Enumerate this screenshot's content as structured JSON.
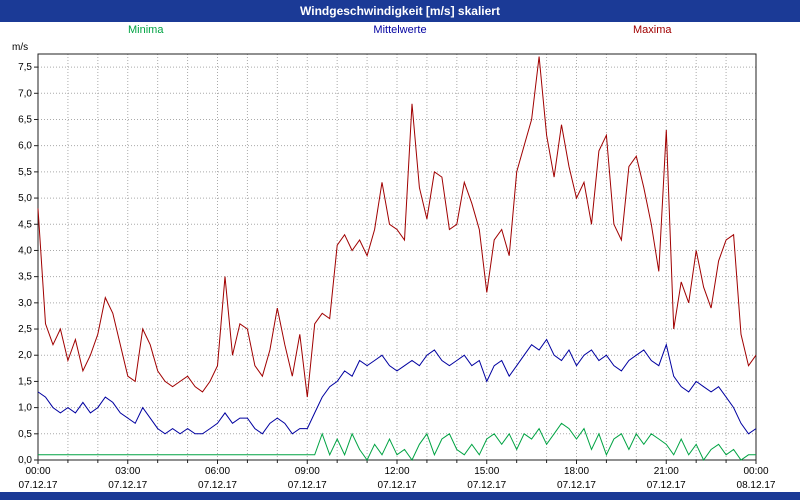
{
  "title_bar": {
    "title": "Windgeschwindigkeit [m/s] skaliert"
  },
  "legend": {
    "minima": "Minima",
    "mittelwerte": "Mittelwerte",
    "maxima": "Maxima"
  },
  "colors": {
    "title_bar_bg": "#1b3a96",
    "bottom_strip_bg": "#1b3a96",
    "plot_border": "#222222",
    "grid": "#aaaaaa",
    "axis_text": "#000000"
  },
  "axes": {
    "y_unit": "m/s",
    "y_ticks": [
      "0,0",
      "0,5",
      "1,0",
      "1,5",
      "2,0",
      "2,5",
      "3,0",
      "3,5",
      "4,0",
      "4,5",
      "5,0",
      "5,5",
      "6,0",
      "6,5",
      "7,0",
      "7,5"
    ],
    "x_ticks": [
      {
        "time": "00:00",
        "date": "07.12.17"
      },
      {
        "time": "03:00",
        "date": "07.12.17"
      },
      {
        "time": "06:00",
        "date": "07.12.17"
      },
      {
        "time": "09:00",
        "date": "07.12.17"
      },
      {
        "time": "12:00",
        "date": "07.12.17"
      },
      {
        "time": "15:00",
        "date": "07.12.17"
      },
      {
        "time": "18:00",
        "date": "07.12.17"
      },
      {
        "time": "21:00",
        "date": "07.12.17"
      },
      {
        "time": "00:00",
        "date": "08.12.17"
      }
    ]
  },
  "chart_data": {
    "type": "line",
    "title": "Windgeschwindigkeit [m/s] skaliert",
    "xlabel": "",
    "ylabel": "m/s",
    "x_range": [
      0,
      24
    ],
    "ylim": [
      0,
      7.75
    ],
    "y_tick_step": 0.5,
    "grid": true,
    "x_interval_hours": 0.25,
    "legend_position": "top",
    "series": [
      {
        "name": "Minima",
        "color": "#00a343",
        "values": [
          0.1,
          0.1,
          0.1,
          0.1,
          0.1,
          0.1,
          0.1,
          0.1,
          0.1,
          0.1,
          0.1,
          0.1,
          0.1,
          0.1,
          0.1,
          0.1,
          0.1,
          0.1,
          0.1,
          0.1,
          0.1,
          0.1,
          0.1,
          0.1,
          0.1,
          0.1,
          0.1,
          0.1,
          0.1,
          0.1,
          0.1,
          0.1,
          0.1,
          0.1,
          0.1,
          0.1,
          0.1,
          0.1,
          0.5,
          0.1,
          0.4,
          0.1,
          0.5,
          0.2,
          0.0,
          0.3,
          0.1,
          0.4,
          0.1,
          0.2,
          0.0,
          0.3,
          0.5,
          0.1,
          0.4,
          0.5,
          0.2,
          0.1,
          0.3,
          0.1,
          0.4,
          0.5,
          0.3,
          0.5,
          0.2,
          0.5,
          0.4,
          0.6,
          0.3,
          0.5,
          0.7,
          0.6,
          0.4,
          0.6,
          0.2,
          0.5,
          0.1,
          0.4,
          0.5,
          0.2,
          0.5,
          0.3,
          0.5,
          0.4,
          0.3,
          0.1,
          0.4,
          0.1,
          0.3,
          0.0,
          0.2,
          0.3,
          0.1,
          0.2,
          0.0,
          0.1,
          0.1
        ]
      },
      {
        "name": "Mittelwerte",
        "color": "#0000a0",
        "values": [
          1.3,
          1.2,
          1.0,
          0.9,
          1.0,
          0.9,
          1.1,
          0.9,
          1.0,
          1.2,
          1.1,
          0.9,
          0.8,
          0.7,
          1.0,
          0.8,
          0.6,
          0.5,
          0.6,
          0.5,
          0.6,
          0.5,
          0.5,
          0.6,
          0.7,
          0.9,
          0.7,
          0.8,
          0.8,
          0.6,
          0.5,
          0.7,
          0.8,
          0.7,
          0.5,
          0.6,
          0.6,
          0.9,
          1.2,
          1.4,
          1.5,
          1.7,
          1.6,
          1.9,
          1.8,
          1.9,
          2.0,
          1.8,
          1.7,
          1.8,
          1.9,
          1.8,
          2.0,
          2.1,
          1.9,
          1.8,
          1.9,
          2.0,
          1.8,
          1.9,
          1.5,
          1.8,
          1.9,
          1.6,
          1.8,
          2.0,
          2.2,
          2.1,
          2.3,
          2.0,
          1.9,
          2.1,
          1.8,
          2.0,
          2.1,
          1.9,
          2.0,
          1.8,
          1.7,
          1.9,
          2.0,
          2.1,
          1.9,
          1.8,
          2.2,
          1.6,
          1.4,
          1.3,
          1.5,
          1.4,
          1.3,
          1.4,
          1.2,
          1.0,
          0.7,
          0.5,
          0.6
        ]
      },
      {
        "name": "Maxima",
        "color": "#a00000",
        "values": [
          4.8,
          2.6,
          2.2,
          2.5,
          1.9,
          2.3,
          1.7,
          2.0,
          2.4,
          3.1,
          2.8,
          2.2,
          1.6,
          1.5,
          2.5,
          2.2,
          1.7,
          1.5,
          1.4,
          1.5,
          1.6,
          1.4,
          1.3,
          1.5,
          1.8,
          3.5,
          2.0,
          2.6,
          2.5,
          1.8,
          1.6,
          2.1,
          2.9,
          2.2,
          1.6,
          2.4,
          1.2,
          2.6,
          2.8,
          2.7,
          4.1,
          4.3,
          4.0,
          4.2,
          3.9,
          4.4,
          5.3,
          4.5,
          4.4,
          4.2,
          6.8,
          5.2,
          4.6,
          5.5,
          5.4,
          4.4,
          4.5,
          5.3,
          4.9,
          4.4,
          3.2,
          4.2,
          4.4,
          3.9,
          5.5,
          6.0,
          6.5,
          7.7,
          6.2,
          5.4,
          6.4,
          5.6,
          5.0,
          5.3,
          4.5,
          5.9,
          6.2,
          4.5,
          4.2,
          5.6,
          5.8,
          5.2,
          4.5,
          3.6,
          6.3,
          2.5,
          3.4,
          3.0,
          4.0,
          3.3,
          2.9,
          3.8,
          4.2,
          4.3,
          2.4,
          1.8,
          2.0
        ]
      }
    ]
  }
}
